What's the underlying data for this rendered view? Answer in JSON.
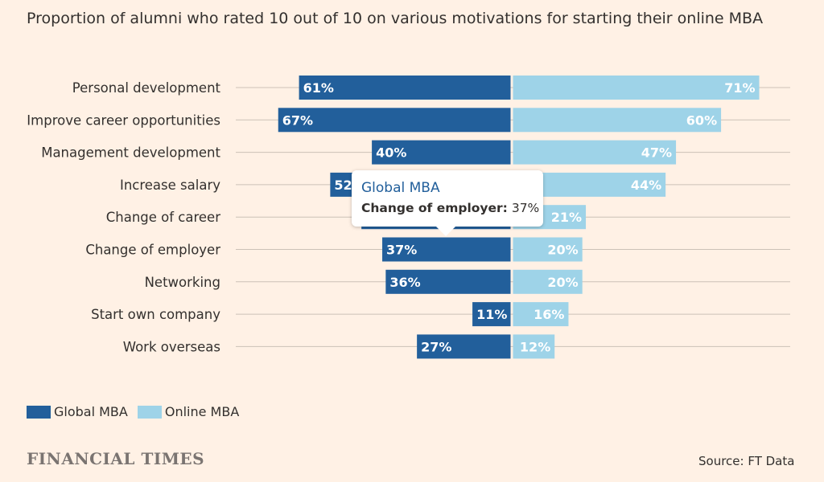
{
  "chart_data": {
    "type": "bar",
    "title": "Proportion of alumni who rated 10 out of 10 on various motivations for starting their online MBA",
    "categories": [
      "Personal development",
      "Improve career opportunities",
      "Management development",
      "Increase salary",
      "Change of career",
      "Change of employer",
      "Networking",
      "Start own company",
      "Work overseas"
    ],
    "series": [
      {
        "name": "Global MBA",
        "values": [
          61,
          67,
          40,
          52,
          43,
          37,
          36,
          11,
          27
        ],
        "labels": [
          "61%",
          "67%",
          "40%",
          "52%",
          "",
          "37%",
          "36%",
          "11%",
          "27%"
        ]
      },
      {
        "name": "Online MBA",
        "values": [
          71,
          60,
          47,
          44,
          21,
          20,
          20,
          16,
          12
        ],
        "labels": [
          "71%",
          "60%",
          "47%",
          "44%",
          "21%",
          "20%",
          "20%",
          "16%",
          "12%"
        ]
      }
    ],
    "colors": {
      "Global MBA": "#225f9b",
      "Online MBA": "#9ed3e8"
    },
    "legend_position": "bottom-left",
    "grid": true
  },
  "tooltip": {
    "series": "Global MBA",
    "category": "Change of employer:",
    "value": "37%"
  },
  "footer": {
    "brand": "FINANCIAL TIMES",
    "source": "Source: FT Data"
  }
}
